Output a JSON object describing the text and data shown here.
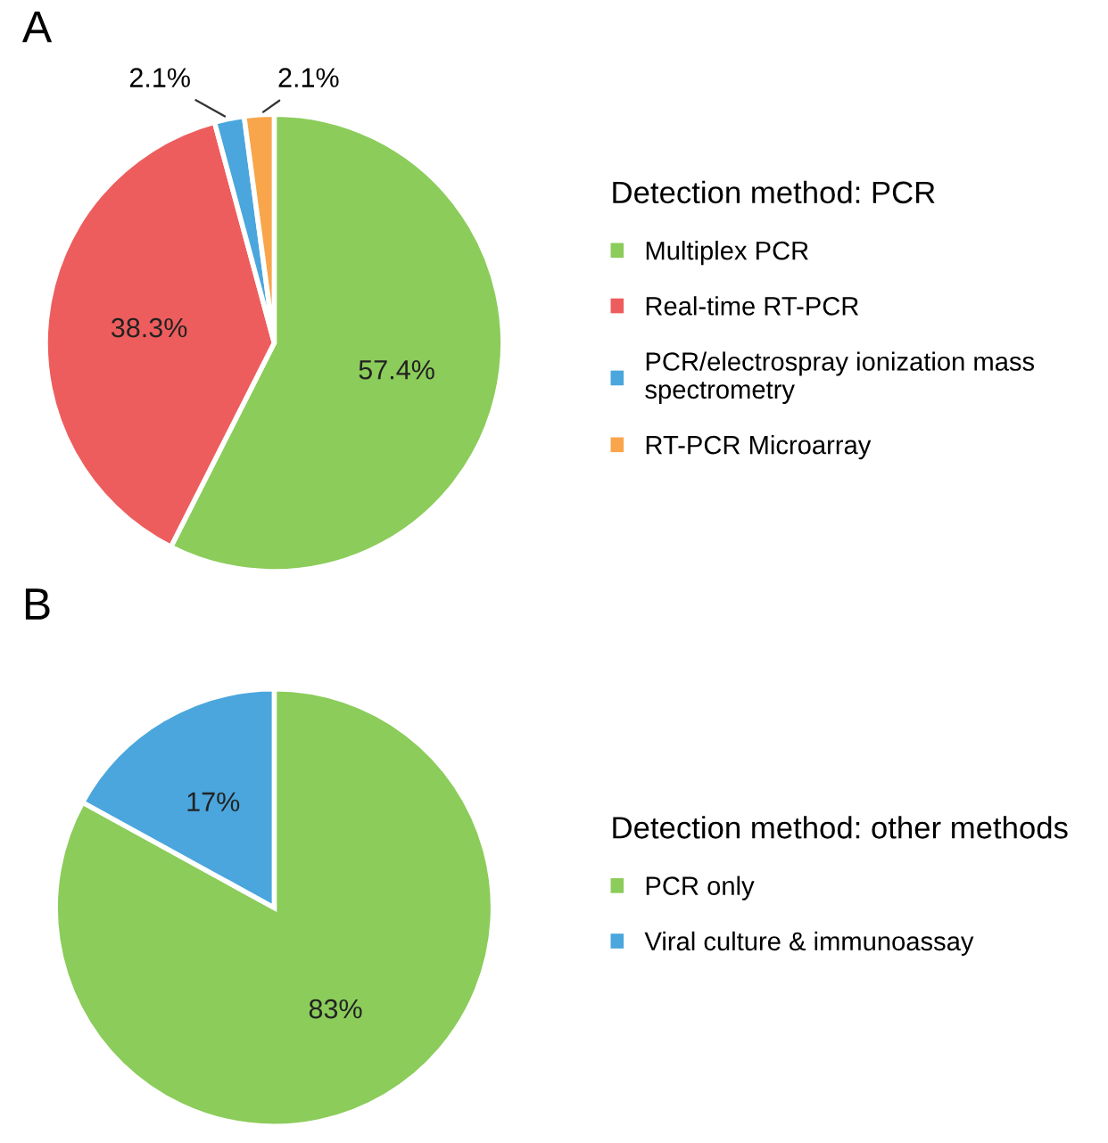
{
  "chart_data": [
    {
      "type": "pie",
      "title": "A",
      "legend_title": "Detection method: PCR",
      "categories": [
        "Multiplex PCR",
        "Real-time RT-PCR",
        "PCR/electrospray ionization mass\nspectrometry",
        "RT-PCR Microarray"
      ],
      "values": [
        57.4,
        38.3,
        2.1,
        2.1
      ],
      "colors": [
        "#8bcc5a",
        "#ee5d5d",
        "#4aa6dc",
        "#f8a54b"
      ],
      "value_labels": [
        "57.4%",
        "38.3%",
        "2.1%",
        "2.1%"
      ],
      "legend": "right"
    },
    {
      "type": "pie",
      "title": "B",
      "legend_title": "Detection method: other methods",
      "categories": [
        "PCR only",
        "Viral culture & immunoassay"
      ],
      "values": [
        83,
        17
      ],
      "colors": [
        "#8bcc5a",
        "#4aa6dc"
      ],
      "value_labels": [
        "83%",
        "17%"
      ],
      "legend": "right"
    }
  ]
}
